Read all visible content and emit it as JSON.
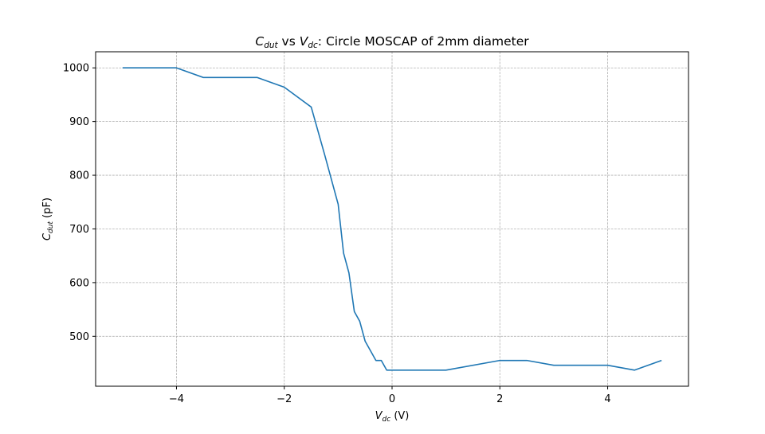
{
  "chart_data": {
    "type": "line",
    "title_parts": {
      "c_main": "C",
      "c_sub": "dut",
      "mid": " vs ",
      "v_main": "V",
      "v_sub": "dc",
      "rest": ": Circle MOSCAP of 2mm diameter"
    },
    "xlabel_parts": {
      "main": "V",
      "sub": "dc",
      "unit": " (V)"
    },
    "ylabel_parts": {
      "main": "C",
      "sub": "dut",
      "unit": " (pF)"
    },
    "xlim": [
      -5.5,
      5.5
    ],
    "ylim": [
      407,
      1030
    ],
    "xticks": [
      -4,
      -2,
      0,
      2,
      4
    ],
    "xtick_labels": [
      "−4",
      "−2",
      "0",
      "2",
      "4"
    ],
    "yticks": [
      500,
      600,
      700,
      800,
      900,
      1000
    ],
    "ytick_labels": [
      "500",
      "600",
      "700",
      "800",
      "900",
      "1000"
    ],
    "grid": true,
    "series": [
      {
        "color": "#1f77b4",
        "x": [
          -5,
          -4,
          -3.5,
          -3,
          -2.5,
          -2,
          -1.5,
          -1.25,
          -1,
          -0.9,
          -0.8,
          -0.7,
          -0.6,
          -0.5,
          -0.4,
          -0.3,
          -0.2,
          -0.1,
          0,
          0.5,
          1,
          2,
          2.5,
          3,
          3.5,
          4,
          4.5,
          5
        ],
        "y": [
          1000,
          1000,
          982,
          982,
          982,
          964,
          927,
          838,
          746,
          655,
          618,
          546,
          528,
          491,
          473,
          455,
          455,
          437,
          437,
          437,
          437,
          455,
          455,
          446,
          446,
          446,
          437,
          455
        ]
      }
    ]
  }
}
